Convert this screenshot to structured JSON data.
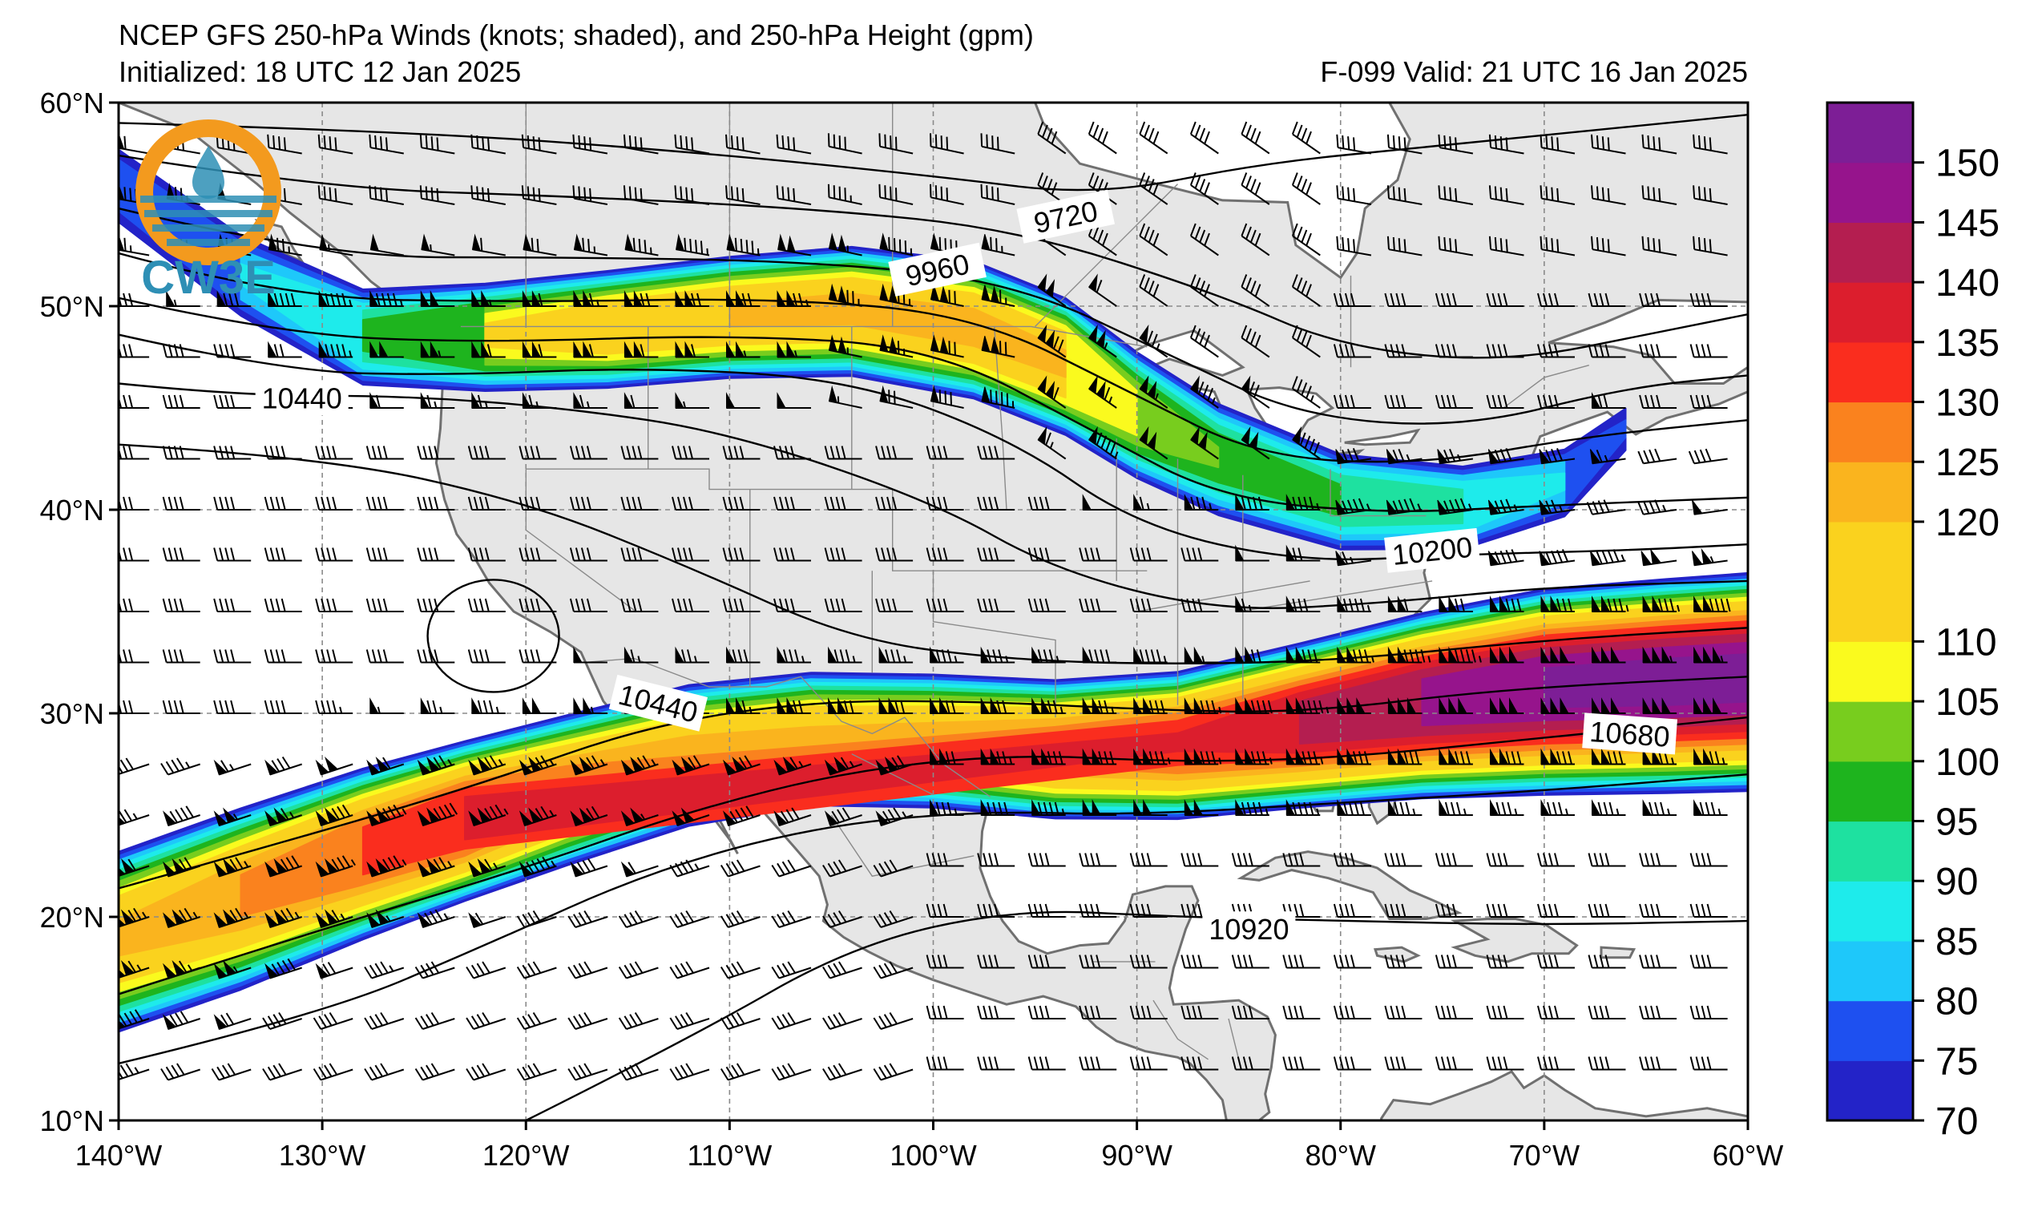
{
  "header": {
    "title": "NCEP GFS 250-hPa Winds (knots; shaded), and 250-hPa Height (gpm)",
    "initialized": "Initialized: 18 UTC 12 Jan 2025",
    "valid": "F-099  Valid: 21 UTC 16 Jan 2025"
  },
  "logo": {
    "text": "CW3E"
  },
  "map": {
    "lon_range": [
      -140,
      -60
    ],
    "lat_range": [
      10,
      60
    ],
    "lon_ticks": [
      "140°W",
      "130°W",
      "120°W",
      "110°W",
      "100°W",
      "90°W",
      "80°W",
      "70°W",
      "60°W"
    ],
    "lat_ticks": [
      "10°N",
      "20°N",
      "30°N",
      "40°N",
      "50°N",
      "60°N"
    ],
    "grid": true,
    "land_color": "#e6e6e6",
    "ocean_color": "#ffffff"
  },
  "contours": {
    "labels": [
      {
        "text": "9720",
        "lon": -93.5,
        "lat": 54.4,
        "angle": 12
      },
      {
        "text": "9960",
        "lon": -99.8,
        "lat": 51.8,
        "angle": 12
      },
      {
        "text": "10440",
        "lon": -131.0,
        "lat": 45.5,
        "angle": 0
      },
      {
        "text": "10200",
        "lon": -75.5,
        "lat": 38.0,
        "angle": 6
      },
      {
        "text": "10440",
        "lon": -113.5,
        "lat": 30.5,
        "angle": -14
      },
      {
        "text": "10680",
        "lon": -65.8,
        "lat": 29.0,
        "angle": -4
      },
      {
        "text": "10920",
        "lon": -84.5,
        "lat": 19.4,
        "angle": 0
      }
    ]
  },
  "colorbar": {
    "tick_labels": [
      "70",
      "75",
      "80",
      "85",
      "90",
      "95",
      "100",
      "105",
      "110",
      "120",
      "125",
      "130",
      "135",
      "140",
      "145",
      "150"
    ],
    "levels": [
      70,
      75,
      80,
      85,
      90,
      95,
      100,
      105,
      110,
      120,
      125,
      130,
      135,
      140,
      145,
      150,
      155
    ],
    "colors": [
      "#2323c8",
      "#1e50f0",
      "#1ec8fa",
      "#1eebeb",
      "#1ee1a0",
      "#1eb41e",
      "#78cd1e",
      "#fafa1e",
      "#fad21e",
      "#fab41e",
      "#fa821e",
      "#fa2d1e",
      "#dc1e2d",
      "#b41e50",
      "#96148c",
      "#7d1e96"
    ]
  }
}
